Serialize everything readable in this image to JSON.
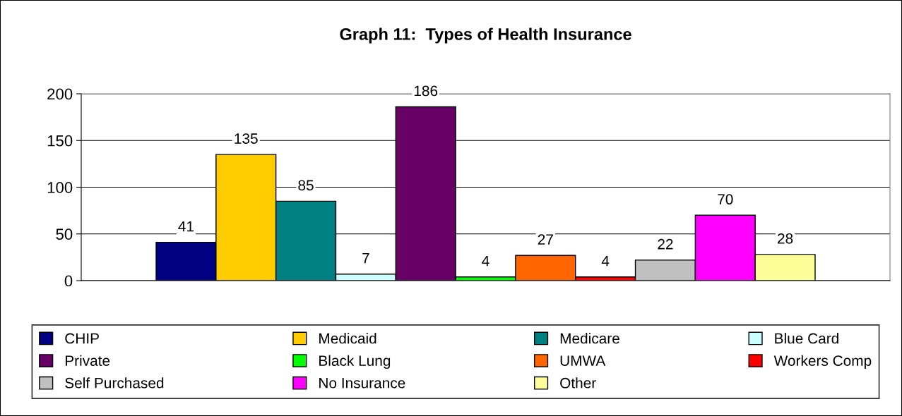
{
  "chart_data": {
    "type": "bar",
    "title": "Graph 11:  Types of Health Insurance",
    "categories": [
      null
    ],
    "series": [
      {
        "name": "CHIP",
        "color": "#000080",
        "values": [
          41
        ]
      },
      {
        "name": "Medicaid",
        "color": "#ffcc00",
        "values": [
          135
        ]
      },
      {
        "name": "Medicare",
        "color": "#008080",
        "values": [
          85
        ]
      },
      {
        "name": "Blue Card",
        "color": "#ccffff",
        "values": [
          7
        ]
      },
      {
        "name": "Private",
        "color": "#660066",
        "values": [
          186
        ]
      },
      {
        "name": "Black Lung",
        "color": "#00ff00",
        "values": [
          4
        ]
      },
      {
        "name": "UMWA",
        "color": "#ff6600",
        "values": [
          27
        ]
      },
      {
        "name": "Workers Comp",
        "color": "#ff0000",
        "values": [
          4
        ]
      },
      {
        "name": "Self Purchased",
        "color": "#c0c0c0",
        "values": [
          22
        ]
      },
      {
        "name": "No Insurance",
        "color": "#ff00ff",
        "values": [
          70
        ]
      },
      {
        "name": "Other",
        "color": "#ffff99",
        "values": [
          28
        ]
      }
    ],
    "ylim": [
      0,
      200
    ],
    "yticks": [
      0,
      50,
      100,
      150,
      200
    ],
    "grid": "y",
    "legend": "bottom",
    "data_labels": true
  }
}
